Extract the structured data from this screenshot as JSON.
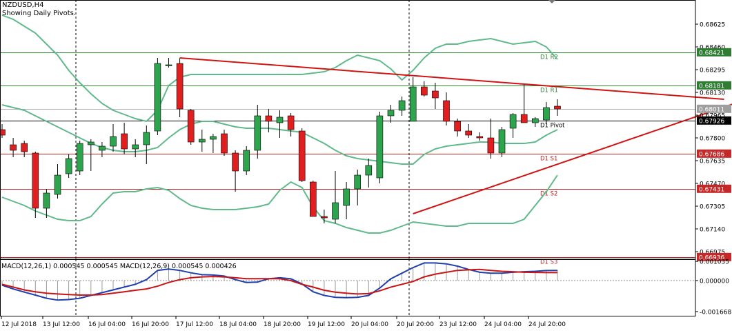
{
  "header": {
    "symbol": "NZDUSD,H4",
    "subtitle": "Showing Daily Pivots."
  },
  "macd_title": "MACD(12,26,1) 0.000545 0.000545 MACD(12,26,9) 0.000545 0.000426",
  "colors": {
    "bull": "#2ea44f",
    "bear": "#e02020",
    "bollinger": "#5fb98a",
    "trend": "#d01414",
    "pivot_line_r": "#2e8b2e",
    "pivot_line_s": "#c02222",
    "macd_main": "#1f3fae",
    "macd_signal": "#c81414",
    "grid": "#000000"
  },
  "chart_data": [
    {
      "type": "candlestick",
      "title": "NZDUSD,H4",
      "y_ticks": [
        "0.68625",
        "0.68460",
        "0.68295",
        "0.68130",
        "0.67965",
        "0.67800",
        "0.67635",
        "0.67470",
        "0.67305",
        "0.67140",
        "0.66975"
      ],
      "ylim": [
        0.6692,
        0.688
      ],
      "x_ticks": [
        "12 Jul 2018",
        "13 Jul 12:00",
        "16 Jul 04:00",
        "16 Jul 20:00",
        "17 Jul 12:00",
        "18 Jul 04:00",
        "18 Jul 20:00",
        "19 Jul 12:00",
        "20 Jul 04:00",
        "20 Jul 20:00",
        "23 Jul 12:00",
        "24 Jul 04:00",
        "24 Jul 20:00"
      ],
      "price_labels": [
        {
          "text": "0.68421",
          "value": 0.68421,
          "style": "green"
        },
        {
          "text": "0.68181",
          "value": 0.68181,
          "style": "green"
        },
        {
          "text": "0.68011",
          "value": 0.68011,
          "style": "gray"
        },
        {
          "text": "0.67926",
          "value": 0.67926,
          "style": "black"
        },
        {
          "text": "0.67686",
          "value": 0.67686,
          "style": "red"
        },
        {
          "text": "0.67431",
          "value": 0.67431,
          "style": "red"
        },
        {
          "text": "0.66936",
          "value": 0.66936,
          "style": "red"
        }
      ],
      "pivots": [
        {
          "name": "D1 R2",
          "value": 0.68421,
          "kind": "r"
        },
        {
          "name": "D1 R1",
          "value": 0.68181,
          "kind": "r"
        },
        {
          "name": "D1 Pivot",
          "value": 0.67926,
          "kind": "p"
        },
        {
          "name": "D1 S1",
          "value": 0.67686,
          "kind": "s"
        },
        {
          "name": "D1 S2",
          "value": 0.67431,
          "kind": "s"
        },
        {
          "name": "D1 S3",
          "value": 0.66936,
          "kind": "s"
        }
      ],
      "candles": [
        {
          "o": 0.6786,
          "h": 0.679,
          "l": 0.678,
          "c": 0.6782
        },
        {
          "o": 0.6775,
          "h": 0.678,
          "l": 0.6766,
          "c": 0.6771
        },
        {
          "o": 0.6776,
          "h": 0.6778,
          "l": 0.6766,
          "c": 0.677
        },
        {
          "o": 0.6769,
          "h": 0.677,
          "l": 0.6722,
          "c": 0.6729
        },
        {
          "o": 0.6729,
          "h": 0.6743,
          "l": 0.6722,
          "c": 0.674
        },
        {
          "o": 0.6739,
          "h": 0.6761,
          "l": 0.6736,
          "c": 0.6753
        },
        {
          "o": 0.6754,
          "h": 0.6768,
          "l": 0.6751,
          "c": 0.6765
        },
        {
          "o": 0.6756,
          "h": 0.6778,
          "l": 0.6753,
          "c": 0.6776
        },
        {
          "o": 0.6775,
          "h": 0.6779,
          "l": 0.6756,
          "c": 0.6777
        },
        {
          "o": 0.6771,
          "h": 0.6777,
          "l": 0.6766,
          "c": 0.6774
        },
        {
          "o": 0.6774,
          "h": 0.679,
          "l": 0.677,
          "c": 0.6781
        },
        {
          "o": 0.6783,
          "h": 0.6791,
          "l": 0.6768,
          "c": 0.6772
        },
        {
          "o": 0.6772,
          "h": 0.6779,
          "l": 0.6766,
          "c": 0.6775
        },
        {
          "o": 0.6775,
          "h": 0.6789,
          "l": 0.6761,
          "c": 0.6784
        },
        {
          "o": 0.6785,
          "h": 0.6838,
          "l": 0.6782,
          "c": 0.6834
        },
        {
          "o": 0.6833,
          "h": 0.6838,
          "l": 0.6831,
          "c": 0.6833
        },
        {
          "o": 0.6834,
          "h": 0.6838,
          "l": 0.6795,
          "c": 0.6801
        },
        {
          "o": 0.68,
          "h": 0.6801,
          "l": 0.6775,
          "c": 0.6777
        },
        {
          "o": 0.6777,
          "h": 0.6786,
          "l": 0.677,
          "c": 0.6779
        },
        {
          "o": 0.6779,
          "h": 0.6783,
          "l": 0.6769,
          "c": 0.6781
        },
        {
          "o": 0.6783,
          "h": 0.6786,
          "l": 0.6767,
          "c": 0.6769
        },
        {
          "o": 0.6769,
          "h": 0.6771,
          "l": 0.6741,
          "c": 0.6756
        },
        {
          "o": 0.6756,
          "h": 0.6774,
          "l": 0.6753,
          "c": 0.6771
        },
        {
          "o": 0.6771,
          "h": 0.6804,
          "l": 0.6765,
          "c": 0.6796
        },
        {
          "o": 0.6796,
          "h": 0.6801,
          "l": 0.6784,
          "c": 0.6792
        },
        {
          "o": 0.6791,
          "h": 0.68,
          "l": 0.678,
          "c": 0.6795
        },
        {
          "o": 0.6796,
          "h": 0.6798,
          "l": 0.6781,
          "c": 0.6786
        },
        {
          "o": 0.6785,
          "h": 0.6787,
          "l": 0.6748,
          "c": 0.6749
        },
        {
          "o": 0.6748,
          "h": 0.6749,
          "l": 0.6723,
          "c": 0.6723
        },
        {
          "o": 0.6723,
          "h": 0.6728,
          "l": 0.6718,
          "c": 0.6722
        },
        {
          "o": 0.6721,
          "h": 0.6756,
          "l": 0.6718,
          "c": 0.6733
        },
        {
          "o": 0.6731,
          "h": 0.6748,
          "l": 0.6721,
          "c": 0.6743
        },
        {
          "o": 0.6743,
          "h": 0.6757,
          "l": 0.6731,
          "c": 0.6753
        },
        {
          "o": 0.6753,
          "h": 0.6765,
          "l": 0.6744,
          "c": 0.676
        },
        {
          "o": 0.6751,
          "h": 0.6799,
          "l": 0.6747,
          "c": 0.6796
        },
        {
          "o": 0.6796,
          "h": 0.6804,
          "l": 0.6791,
          "c": 0.68
        },
        {
          "o": 0.68,
          "h": 0.681,
          "l": 0.6796,
          "c": 0.6807
        },
        {
          "o": 0.6792,
          "h": 0.6824,
          "l": 0.6792,
          "c": 0.6817
        },
        {
          "o": 0.6817,
          "h": 0.6821,
          "l": 0.681,
          "c": 0.6811
        },
        {
          "o": 0.6814,
          "h": 0.682,
          "l": 0.6801,
          "c": 0.6809
        },
        {
          "o": 0.6807,
          "h": 0.6813,
          "l": 0.6789,
          "c": 0.6792
        },
        {
          "o": 0.6792,
          "h": 0.6794,
          "l": 0.6781,
          "c": 0.6785
        },
        {
          "o": 0.6785,
          "h": 0.679,
          "l": 0.678,
          "c": 0.6782
        },
        {
          "o": 0.6781,
          "h": 0.6784,
          "l": 0.6778,
          "c": 0.678
        },
        {
          "o": 0.678,
          "h": 0.6794,
          "l": 0.6765,
          "c": 0.6769
        },
        {
          "o": 0.6769,
          "h": 0.6788,
          "l": 0.6766,
          "c": 0.6786
        },
        {
          "o": 0.6787,
          "h": 0.6798,
          "l": 0.678,
          "c": 0.6797
        },
        {
          "o": 0.6797,
          "h": 0.6819,
          "l": 0.6791,
          "c": 0.6791
        },
        {
          "o": 0.6791,
          "h": 0.6795,
          "l": 0.6788,
          "c": 0.6794
        },
        {
          "o": 0.6793,
          "h": 0.6806,
          "l": 0.679,
          "c": 0.6802
        },
        {
          "o": 0.6803,
          "h": 0.6808,
          "l": 0.6796,
          "c": 0.6801
        }
      ],
      "bollinger": {
        "upper": [
          0.6869,
          0.6866,
          0.6861,
          0.6856,
          0.6848,
          0.684,
          0.6829,
          0.682,
          0.6812,
          0.6805,
          0.68,
          0.6797,
          0.6794,
          0.6792,
          0.68,
          0.6818,
          0.6824,
          0.6826,
          0.6826,
          0.6826,
          0.6826,
          0.6826,
          0.6826,
          0.6826,
          0.6826,
          0.6826,
          0.6826,
          0.6826,
          0.6827,
          0.6828,
          0.6831,
          0.6836,
          0.684,
          0.6838,
          0.6836,
          0.683,
          0.6822,
          0.6829,
          0.6838,
          0.6845,
          0.6848,
          0.6848,
          0.685,
          0.6851,
          0.6852,
          0.685,
          0.6848,
          0.6849,
          0.685,
          0.6846,
          0.6837
        ],
        "middle": [
          0.6804,
          0.6802,
          0.68,
          0.6796,
          0.6792,
          0.6788,
          0.6784,
          0.678,
          0.6776,
          0.6773,
          0.6771,
          0.677,
          0.677,
          0.6771,
          0.6773,
          0.678,
          0.6786,
          0.679,
          0.6792,
          0.6792,
          0.679,
          0.6788,
          0.6787,
          0.6787,
          0.6787,
          0.6786,
          0.6785,
          0.6784,
          0.678,
          0.6776,
          0.6771,
          0.6767,
          0.6765,
          0.6764,
          0.6763,
          0.6762,
          0.6761,
          0.6761,
          0.6768,
          0.6772,
          0.6774,
          0.6775,
          0.6776,
          0.6777,
          0.6777,
          0.6776,
          0.6776,
          0.6776,
          0.6777,
          0.6782,
          0.6786
        ],
        "lower": [
          0.6737,
          0.6734,
          0.6731,
          0.6727,
          0.6724,
          0.6721,
          0.672,
          0.672,
          0.6723,
          0.6732,
          0.674,
          0.6741,
          0.6741,
          0.6743,
          0.6744,
          0.6742,
          0.6736,
          0.6731,
          0.6729,
          0.6728,
          0.6728,
          0.6728,
          0.6729,
          0.673,
          0.6732,
          0.6742,
          0.6748,
          0.6744,
          0.673,
          0.672,
          0.6718,
          0.6715,
          0.6713,
          0.6711,
          0.6711,
          0.6713,
          0.6716,
          0.6719,
          0.6718,
          0.6717,
          0.6716,
          0.6716,
          0.6718,
          0.6718,
          0.6718,
          0.6718,
          0.6718,
          0.6721,
          0.6731,
          0.6741,
          0.6753
        ]
      },
      "trendlines": [
        {
          "from": [
            16,
            0.6838
          ],
          "to": [
            65,
            0.6808
          ]
        },
        {
          "from": [
            37,
            0.6725
          ],
          "to": [
            75,
            0.683
          ]
        }
      ]
    },
    {
      "type": "line",
      "title": "MACD(12,26,1) 0.000545 0.000545 MACD(12,26,9) 0.000545 0.000426",
      "y_ticks": [
        "0.001035",
        "0.000000",
        "-0.001668"
      ],
      "ylim": [
        -0.00193,
        0.00115
      ],
      "series": [
        {
          "name": "MACD(12,26,1)",
          "values": [
            -0.00025,
            -0.00045,
            -0.00062,
            -0.00078,
            -0.00095,
            -0.00105,
            -0.00102,
            -0.00095,
            -0.0008,
            -0.00065,
            -0.0005,
            -0.00035,
            -0.0002,
            5e-05,
            0.00055,
            0.00062,
            0.00055,
            0.00042,
            0.00032,
            0.0003,
            0.00025,
            5e-05,
            -0.0001,
            -8e-05,
            0.0001,
            0.00015,
            0.0001,
            -0.00018,
            -0.0006,
            -0.0008,
            -0.0009,
            -0.00092,
            -0.0009,
            -0.0008,
            -0.0004,
            0.0001,
            0.0004,
            0.0007,
            0.00095,
            0.00095,
            0.0009,
            0.00078,
            0.0006,
            0.00045,
            0.0004,
            0.0004,
            0.00045,
            0.00048,
            0.0005,
            0.00054,
            0.00055
          ]
        },
        {
          "name": "MACD(12,26,9)",
          "values": [
            -0.0002,
            -0.00035,
            -0.0005,
            -0.0006,
            -0.00068,
            -0.00072,
            -0.00075,
            -0.00078,
            -0.00078,
            -0.00075,
            -0.00068,
            -0.0006,
            -0.00052,
            -0.00045,
            -0.0003,
            -0.0001,
            5e-05,
            0.00015,
            0.0002,
            0.00022,
            0.0002,
            0.00015,
            0.0001,
            0.0001,
            0.0001,
            0.0001,
            0.0,
            -0.0002,
            -0.00035,
            -0.00052,
            -0.00062,
            -0.00068,
            -0.00072,
            -0.0007,
            -0.00055,
            -0.00035,
            -0.0002,
            -5e-05,
            0.0002,
            0.00035,
            0.00045,
            0.00055,
            0.00058,
            0.0006,
            0.00055,
            0.0005,
            0.00048,
            0.00045,
            0.00044,
            0.00043,
            0.00043
          ]
        }
      ]
    }
  ]
}
